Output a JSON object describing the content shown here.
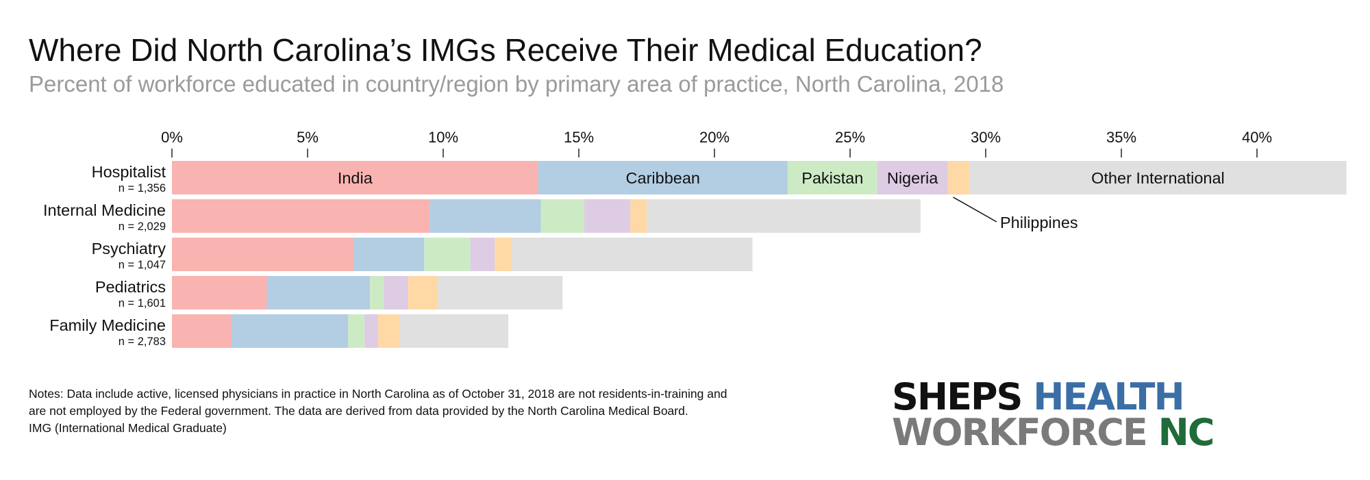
{
  "header": {
    "title": "Where Did North Carolina’s IMGs Receive Their Medical Education?",
    "subtitle": "Percent of workforce educated in country/region by primary area of practice, North Carolina, 2018"
  },
  "chart_data": {
    "type": "bar",
    "orientation": "horizontal",
    "stacked": true,
    "xlim": [
      0,
      43.3
    ],
    "x_ticks": [
      "0%",
      "5%",
      "10%",
      "15%",
      "20%",
      "25%",
      "30%",
      "35%",
      "40%"
    ],
    "x_tick_values": [
      0,
      5,
      10,
      15,
      20,
      25,
      30,
      35,
      40
    ],
    "categories": [
      "Hospitalist",
      "Internal Medicine",
      "Psychiatry",
      "Pediatrics",
      "Family Medicine"
    ],
    "category_n": [
      "n = 1,356",
      "n = 2,029",
      "n = 1,047",
      "n = 1,601",
      "n = 2,783"
    ],
    "series": [
      {
        "name": "India",
        "color": "#f9b3b0",
        "values": [
          13.5,
          9.5,
          6.7,
          3.5,
          2.2
        ]
      },
      {
        "name": "Caribbean",
        "color": "#b3cde3",
        "values": [
          9.2,
          4.1,
          2.6,
          3.8,
          4.3
        ]
      },
      {
        "name": "Pakistan",
        "color": "#ccebc5",
        "values": [
          3.3,
          1.6,
          1.7,
          0.5,
          0.6
        ]
      },
      {
        "name": "Nigeria",
        "color": "#decbe4",
        "values": [
          2.6,
          1.7,
          0.9,
          0.9,
          0.5
        ]
      },
      {
        "name": "Philippines",
        "color": "#fed9a6",
        "values": [
          0.8,
          0.6,
          0.6,
          1.1,
          0.8
        ]
      },
      {
        "name": "Other International",
        "color": "#e0e0e0",
        "values": [
          13.9,
          10.1,
          8.9,
          4.6,
          4.0
        ]
      }
    ],
    "annotation": "Philippines",
    "grid": false
  },
  "notes": {
    "line1": "Notes: Data include active, licensed physicians in practice in North Carolina as of October 31, 2018 are not residents-in-training and",
    "line2": "are not employed by the Federal government. The data are derived from data provided by the North Carolina Medical Board.",
    "line3": "IMG (International Medical Graduate)"
  },
  "logo": {
    "word1": "SHEPS",
    "word2": "HEALTH",
    "word3": "WORKFORCE",
    "word4": "NC",
    "colors": {
      "black": "#111111",
      "blue": "#3a6ea5",
      "gray": "#7a7a7a",
      "green": "#1f6b3a"
    }
  }
}
